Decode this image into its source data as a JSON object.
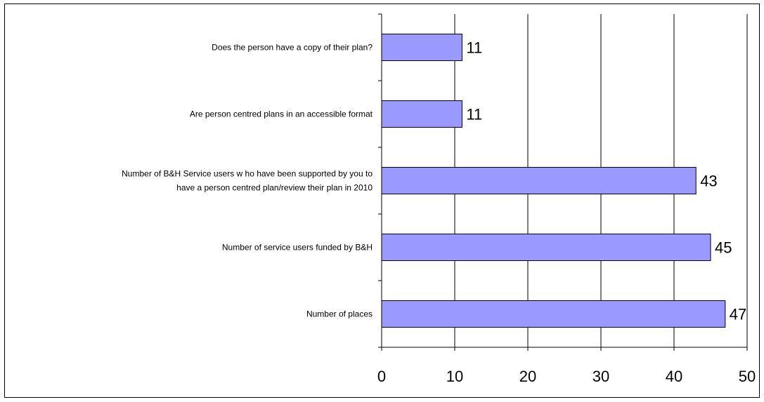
{
  "chart_data": {
    "type": "bar",
    "orientation": "horizontal",
    "categories": [
      "Does the person have a copy of their plan?",
      "Are person centred plans in an accessible format",
      "Number of B&H Service users w ho have been supported by you to have a person centred plan/review  their plan in 2010",
      "Number of service users funded by B&H",
      "Number of places"
    ],
    "category_lines": [
      [
        "Does the person have a copy of their plan?"
      ],
      [
        "Are person centred plans in an accessible format"
      ],
      [
        "Number of B&H Service users w ho have been supported by you to",
        "have a person centred plan/review  their plan in 2010"
      ],
      [
        "Number of service users funded by B&H"
      ],
      [
        "Number of places"
      ]
    ],
    "values": [
      11,
      11,
      43,
      45,
      47
    ],
    "value_labels": [
      "11",
      "11",
      "43",
      "45",
      "47"
    ],
    "xlim": [
      0,
      50
    ],
    "xticks": [
      0,
      10,
      20,
      30,
      40,
      50
    ],
    "xtick_labels": [
      "0",
      "10",
      "20",
      "30",
      "40",
      "50"
    ],
    "grid": "vertical",
    "legend": "none",
    "colors": {
      "bar_fill": "#9999ff",
      "bar_stroke": "#000000",
      "grid": "#000000"
    }
  }
}
